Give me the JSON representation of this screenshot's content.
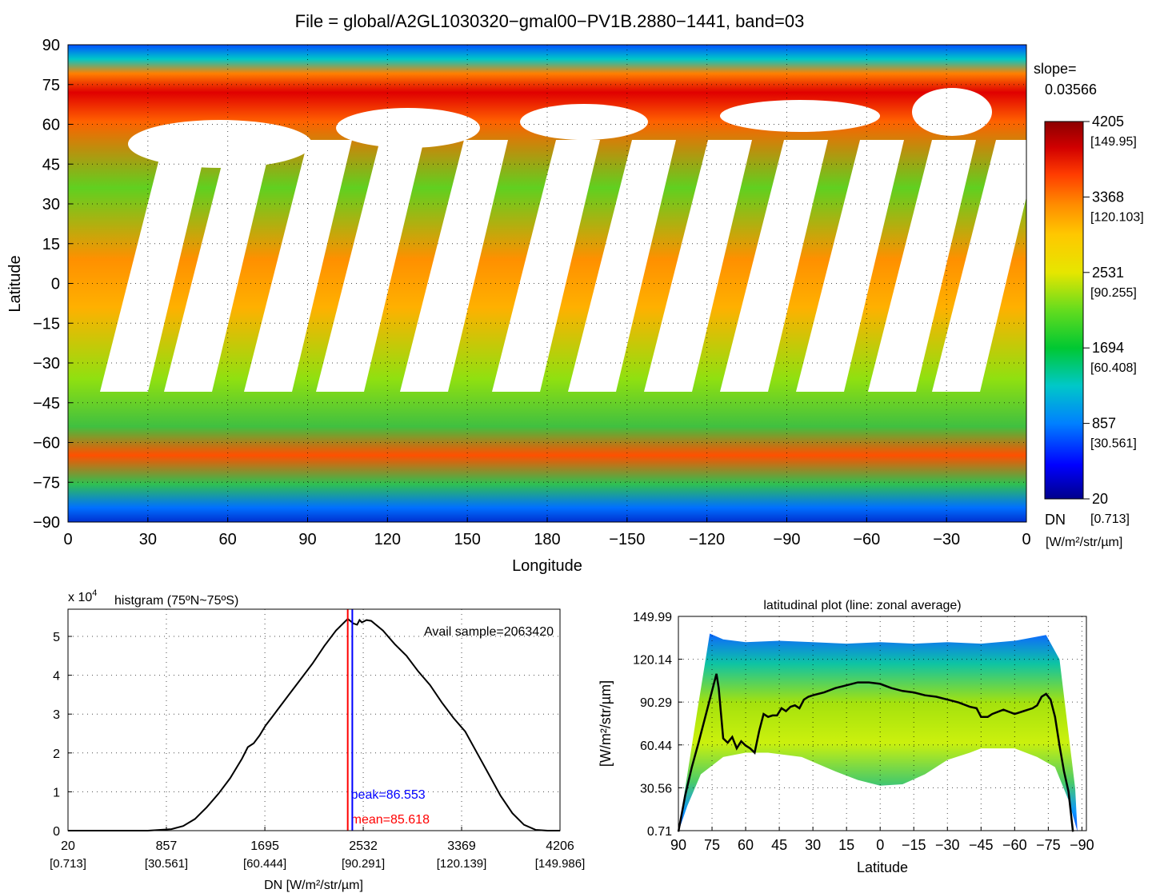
{
  "chart_data": [
    {
      "type": "heatmap",
      "title": "File = global/A2GL1030320−gmal00−PV1B.2880−1441, band=03",
      "xlabel": "Longitude",
      "ylabel": "Latitude",
      "x_ticks": [
        "0",
        "30",
        "60",
        "90",
        "120",
        "150",
        "180",
        "−150",
        "−120",
        "−90",
        "−60",
        "−30",
        "0"
      ],
      "y_ticks": [
        "90",
        "75",
        "60",
        "45",
        "30",
        "15",
        "0",
        "−15",
        "−30",
        "−45",
        "−60",
        "−75",
        "−90"
      ],
      "slope_label": "slope=",
      "slope_value": "0.03566",
      "colorbar": {
        "ticks": [
          {
            "dn": "4205",
            "rad": "[149.95]",
            "frac": 1.0
          },
          {
            "dn": "3368",
            "rad": "[120.103]",
            "frac": 0.8
          },
          {
            "dn": "2531",
            "rad": "[90.255]",
            "frac": 0.6
          },
          {
            "dn": "1694",
            "rad": "[60.408]",
            "frac": 0.4
          },
          {
            "dn": "857",
            "rad": "[30.561]",
            "frac": 0.2
          },
          {
            "dn": "20",
            "rad": "[0.713]",
            "frac": 0.0
          }
        ],
        "unit_dn": "DN",
        "unit_rad": "[W/m²/str/µm]"
      },
      "colors": [
        "#00008b",
        "#0000ff",
        "#0080ff",
        "#00c8c8",
        "#00c832",
        "#32d21e",
        "#c8e600",
        "#ffe600",
        "#ffa000",
        "#ff5a00",
        "#e60000",
        "#8b0000"
      ],
      "grid": true
    },
    {
      "type": "line",
      "title": "histgram (75ºN~75ºS)",
      "exponent_label": "x 10",
      "exponent_power": "4",
      "xlabel": "DN [W/m²/str/µm]",
      "x_ticks": [
        {
          "dn": "20",
          "rad": "[0.713]",
          "value": 20
        },
        {
          "dn": "857",
          "rad": "[30.561]",
          "value": 857
        },
        {
          "dn": "1695",
          "rad": "[60.444]",
          "value": 1695
        },
        {
          "dn": "2532",
          "rad": "[90.291]",
          "value": 2532
        },
        {
          "dn": "3369",
          "rad": "[120.139]",
          "value": 3369
        },
        {
          "dn": "4206",
          "rad": "[149.986]",
          "value": 4206
        }
      ],
      "y_ticks": [
        "0",
        "1",
        "2",
        "3",
        "4",
        "5"
      ],
      "xlim": [
        20,
        4206
      ],
      "ylim": [
        0,
        5.7
      ],
      "x": [
        20,
        700,
        900,
        1000,
        1100,
        1200,
        1300,
        1400,
        1500,
        1550,
        1600,
        1650,
        1700,
        1750,
        1800,
        1900,
        2000,
        2100,
        2200,
        2300,
        2400,
        2450,
        2480,
        2500,
        2520,
        2560,
        2600,
        2700,
        2800,
        2900,
        3000,
        3100,
        3200,
        3300,
        3400,
        3500,
        3600,
        3700,
        3800,
        3900,
        4000,
        4100,
        4206
      ],
      "y": [
        0,
        0,
        0.04,
        0.12,
        0.3,
        0.6,
        0.95,
        1.35,
        1.85,
        2.15,
        2.25,
        2.45,
        2.7,
        2.9,
        3.1,
        3.5,
        3.9,
        4.3,
        4.75,
        5.15,
        5.45,
        5.33,
        5.3,
        5.42,
        5.36,
        5.42,
        5.4,
        5.15,
        4.8,
        4.5,
        4.1,
        3.75,
        3.3,
        2.9,
        2.55,
        2.0,
        1.45,
        0.9,
        0.45,
        0.15,
        0.02,
        0,
        0
      ],
      "series": [
        {
          "name": "mean=85.618",
          "x": 2400,
          "color": "#ff0000"
        },
        {
          "name": "peak=86.553",
          "x": 2439,
          "color": "#0000ff"
        }
      ],
      "annotation": "Avail sample=2063420",
      "grid": true
    },
    {
      "type": "scatter",
      "title": "latitudinal plot (line: zonal average)",
      "xlabel": "Latitude",
      "ylabel": "[W/m²/str/µm]",
      "x_ticks": [
        "90",
        "75",
        "60",
        "45",
        "30",
        "15",
        "0",
        "−15",
        "−30",
        "−45",
        "−60",
        "−75",
        "−90"
      ],
      "y_ticks": [
        "0.71",
        "30.56",
        "60.44",
        "90.29",
        "120.14",
        "149.99"
      ],
      "xlim": [
        90,
        -92
      ],
      "ylim": [
        0.71,
        149.99
      ],
      "x": [
        90,
        87,
        84,
        81,
        78,
        75,
        73,
        72,
        70,
        68,
        66,
        64,
        62,
        60,
        58,
        56,
        54,
        52,
        50,
        48,
        46,
        44,
        42,
        40,
        38,
        36,
        34,
        32,
        30,
        25,
        20,
        15,
        10,
        5,
        0,
        -5,
        -10,
        -15,
        -20,
        -25,
        -30,
        -35,
        -40,
        -43,
        -45,
        -48,
        -50,
        -55,
        -60,
        -64,
        -68,
        -70,
        -72,
        -74,
        -76,
        -78,
        -80,
        -82,
        -84,
        -86
      ],
      "y": [
        0,
        25,
        45,
        62,
        80,
        98,
        110,
        100,
        65,
        62,
        66,
        58,
        63,
        60,
        58,
        55,
        70,
        82,
        80,
        81,
        81,
        86,
        84,
        87,
        88,
        86,
        92,
        94,
        95,
        97,
        100,
        102,
        104,
        104,
        103,
        100,
        98,
        97,
        95,
        94,
        92,
        90,
        87,
        86,
        80,
        80,
        82,
        85,
        82,
        84,
        86,
        88,
        94,
        96,
        92,
        80,
        60,
        42,
        28,
        0
      ],
      "grid": true
    }
  ]
}
